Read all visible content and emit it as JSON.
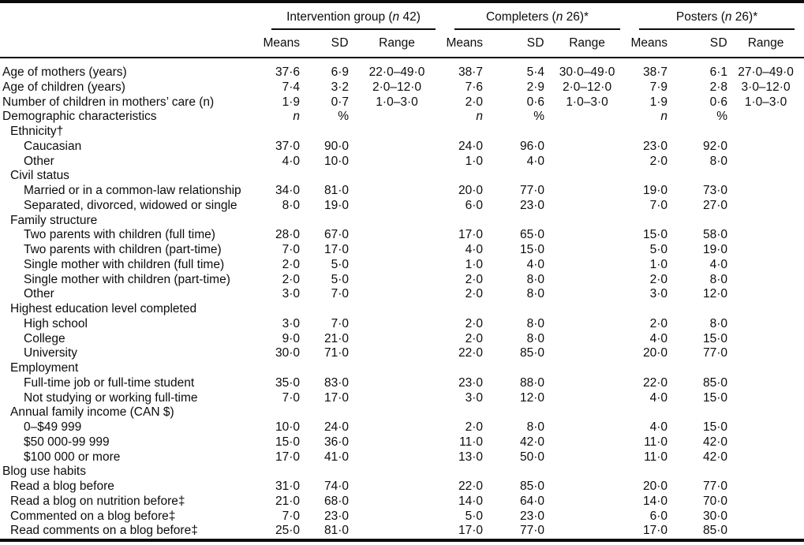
{
  "page": {
    "background_color": "#ffffff",
    "text_color": "#0c0c0c",
    "rule_color": "#0c0c0c"
  },
  "table": {
    "groups": [
      {
        "prefix": "Intervention group (",
        "nvar": "n",
        "suffix": " 42)"
      },
      {
        "prefix": "Completers (",
        "nvar": "n",
        "suffix": " 26)*"
      },
      {
        "prefix": "Posters (",
        "nvar": "n",
        "suffix": " 26)*"
      }
    ],
    "subheaders": {
      "means": "Means",
      "sd": "SD",
      "range": "Range"
    },
    "rows": [
      {
        "label": "Age of mothers (years)",
        "indent": 0,
        "cells": [
          "37·6",
          "6·9",
          "22·0–49·0",
          "38·7",
          "5·4",
          "30·0–49·0",
          "38·7",
          "6·1",
          "27·0–49·0"
        ]
      },
      {
        "label": "Age of children (years)",
        "indent": 0,
        "cells": [
          "7·4",
          "3·2",
          "2·0–12·0",
          "7·6",
          "2·9",
          "2·0–12·0",
          "7·9",
          "2·8",
          "3·0–12·0"
        ]
      },
      {
        "label": "Number of children in mothers’ care (n)",
        "indent": 0,
        "cells": [
          "1·9",
          "0·7",
          "1·0–3·0",
          "2·0",
          "0·6",
          "1·0–3·0",
          "1·9",
          "0·6",
          "1·0–3·0"
        ]
      },
      {
        "label": "Demographic characteristics",
        "indent": 0,
        "cells": [
          "n",
          "%",
          "",
          "n",
          "%",
          "",
          "n",
          "%",
          ""
        ]
      },
      {
        "label": "Ethnicity†",
        "indent": 1,
        "cells": [
          "",
          "",
          "",
          "",
          "",
          "",
          "",
          "",
          ""
        ]
      },
      {
        "label": "Caucasian",
        "indent": 2,
        "cells": [
          "37·0",
          "90·0",
          "",
          "24·0",
          "96·0",
          "",
          "23·0",
          "92·0",
          ""
        ]
      },
      {
        "label": "Other",
        "indent": 2,
        "cells": [
          "4·0",
          "10·0",
          "",
          "1·0",
          "4·0",
          "",
          "2·0",
          "8·0",
          ""
        ]
      },
      {
        "label": "Civil status",
        "indent": 1,
        "cells": [
          "",
          "",
          "",
          "",
          "",
          "",
          "",
          "",
          ""
        ]
      },
      {
        "label": "Married or in a common-law relationship",
        "indent": 2,
        "cells": [
          "34·0",
          "81·0",
          "",
          "20·0",
          "77·0",
          "",
          "19·0",
          "73·0",
          ""
        ]
      },
      {
        "label": "Separated, divorced, widowed or single",
        "indent": 2,
        "cells": [
          "8·0",
          "19·0",
          "",
          "6·0",
          "23·0",
          "",
          "7·0",
          "27·0",
          ""
        ]
      },
      {
        "label": "Family structure",
        "indent": 1,
        "cells": [
          "",
          "",
          "",
          "",
          "",
          "",
          "",
          "",
          ""
        ]
      },
      {
        "label": "Two parents with children (full time)",
        "indent": 2,
        "cells": [
          "28·0",
          "67·0",
          "",
          "17·0",
          "65·0",
          "",
          "15·0",
          "58·0",
          ""
        ]
      },
      {
        "label": "Two parents with children (part-time)",
        "indent": 2,
        "cells": [
          "7·0",
          "17·0",
          "",
          "4·0",
          "15·0",
          "",
          "5·0",
          "19·0",
          ""
        ]
      },
      {
        "label": "Single mother with children (full time)",
        "indent": 2,
        "cells": [
          "2·0",
          "5·0",
          "",
          "1·0",
          "4·0",
          "",
          "1·0",
          "4·0",
          ""
        ]
      },
      {
        "label": "Single mother with children (part-time)",
        "indent": 2,
        "cells": [
          "2·0",
          "5·0",
          "",
          "2·0",
          "8·0",
          "",
          "2·0",
          "8·0",
          ""
        ]
      },
      {
        "label": "Other",
        "indent": 2,
        "cells": [
          "3·0",
          "7·0",
          "",
          "2·0",
          "8·0",
          "",
          "3·0",
          "12·0",
          ""
        ]
      },
      {
        "label": "Highest education level completed",
        "indent": 1,
        "cells": [
          "",
          "",
          "",
          "",
          "",
          "",
          "",
          "",
          ""
        ]
      },
      {
        "label": "High school",
        "indent": 2,
        "cells": [
          "3·0",
          "7·0",
          "",
          "2·0",
          "8·0",
          "",
          "2·0",
          "8·0",
          ""
        ]
      },
      {
        "label": "College",
        "indent": 2,
        "cells": [
          "9·0",
          "21·0",
          "",
          "2·0",
          "8·0",
          "",
          "4·0",
          "15·0",
          ""
        ]
      },
      {
        "label": "University",
        "indent": 2,
        "cells": [
          "30·0",
          "71·0",
          "",
          "22·0",
          "85·0",
          "",
          "20·0",
          "77·0",
          ""
        ]
      },
      {
        "label": "Employment",
        "indent": 1,
        "cells": [
          "",
          "",
          "",
          "",
          "",
          "",
          "",
          "",
          ""
        ]
      },
      {
        "label": "Full-time job or full-time student",
        "indent": 2,
        "cells": [
          "35·0",
          "83·0",
          "",
          "23·0",
          "88·0",
          "",
          "22·0",
          "85·0",
          ""
        ]
      },
      {
        "label": "Not studying or working full-time",
        "indent": 2,
        "cells": [
          "7·0",
          "17·0",
          "",
          "3·0",
          "12·0",
          "",
          "4·0",
          "15·0",
          ""
        ]
      },
      {
        "label": "Annual family income (CAN $)",
        "indent": 1,
        "cells": [
          "",
          "",
          "",
          "",
          "",
          "",
          "",
          "",
          ""
        ]
      },
      {
        "label": "0–$49 999",
        "indent": 2,
        "cells": [
          "10·0",
          "24·0",
          "",
          "2·0",
          "8·0",
          "",
          "4·0",
          "15·0",
          ""
        ]
      },
      {
        "label": "$50 000-99 999",
        "indent": 2,
        "cells": [
          "15·0",
          "36·0",
          "",
          "11·0",
          "42·0",
          "",
          "11·0",
          "42·0",
          ""
        ]
      },
      {
        "label": "$100 000 or more",
        "indent": 2,
        "cells": [
          "17·0",
          "41·0",
          "",
          "13·0",
          "50·0",
          "",
          "11·0",
          "42·0",
          ""
        ]
      },
      {
        "label": "Blog use habits",
        "indent": 0,
        "cells": [
          "",
          "",
          "",
          "",
          "",
          "",
          "",
          "",
          ""
        ]
      },
      {
        "label": "Read a blog before",
        "indent": 1,
        "cells": [
          "31·0",
          "74·0",
          "",
          "22·0",
          "85·0",
          "",
          "20·0",
          "77·0",
          ""
        ]
      },
      {
        "label": "Read a blog on nutrition before‡",
        "indent": 1,
        "cells": [
          "21·0",
          "68·0",
          "",
          "14·0",
          "64·0",
          "",
          "14·0",
          "70·0",
          ""
        ]
      },
      {
        "label": "Commented on a blog before‡",
        "indent": 1,
        "cells": [
          "7·0",
          "23·0",
          "",
          "5·0",
          "23·0",
          "",
          "6·0",
          "30·0",
          ""
        ]
      },
      {
        "label": "Read comments on a blog before‡",
        "indent": 1,
        "cells": [
          "25·0",
          "81·0",
          "",
          "17·0",
          "77·0",
          "",
          "17·0",
          "85·0",
          ""
        ]
      }
    ]
  }
}
